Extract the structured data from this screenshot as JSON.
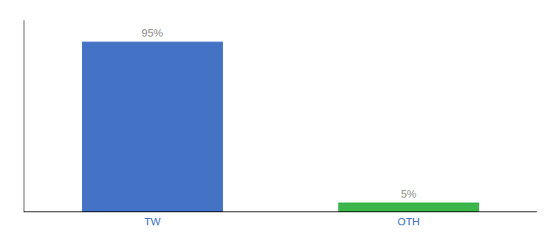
{
  "chart_data": {
    "type": "bar",
    "categories": [
      "TW",
      "OTH"
    ],
    "values": [
      95,
      5
    ],
    "value_labels": [
      "95%",
      "5%"
    ],
    "colors": [
      "#4472c4",
      "#3cb54a"
    ],
    "ylim": [
      0,
      107
    ],
    "grid": false,
    "data_labels": true,
    "tick_labels": "x"
  }
}
